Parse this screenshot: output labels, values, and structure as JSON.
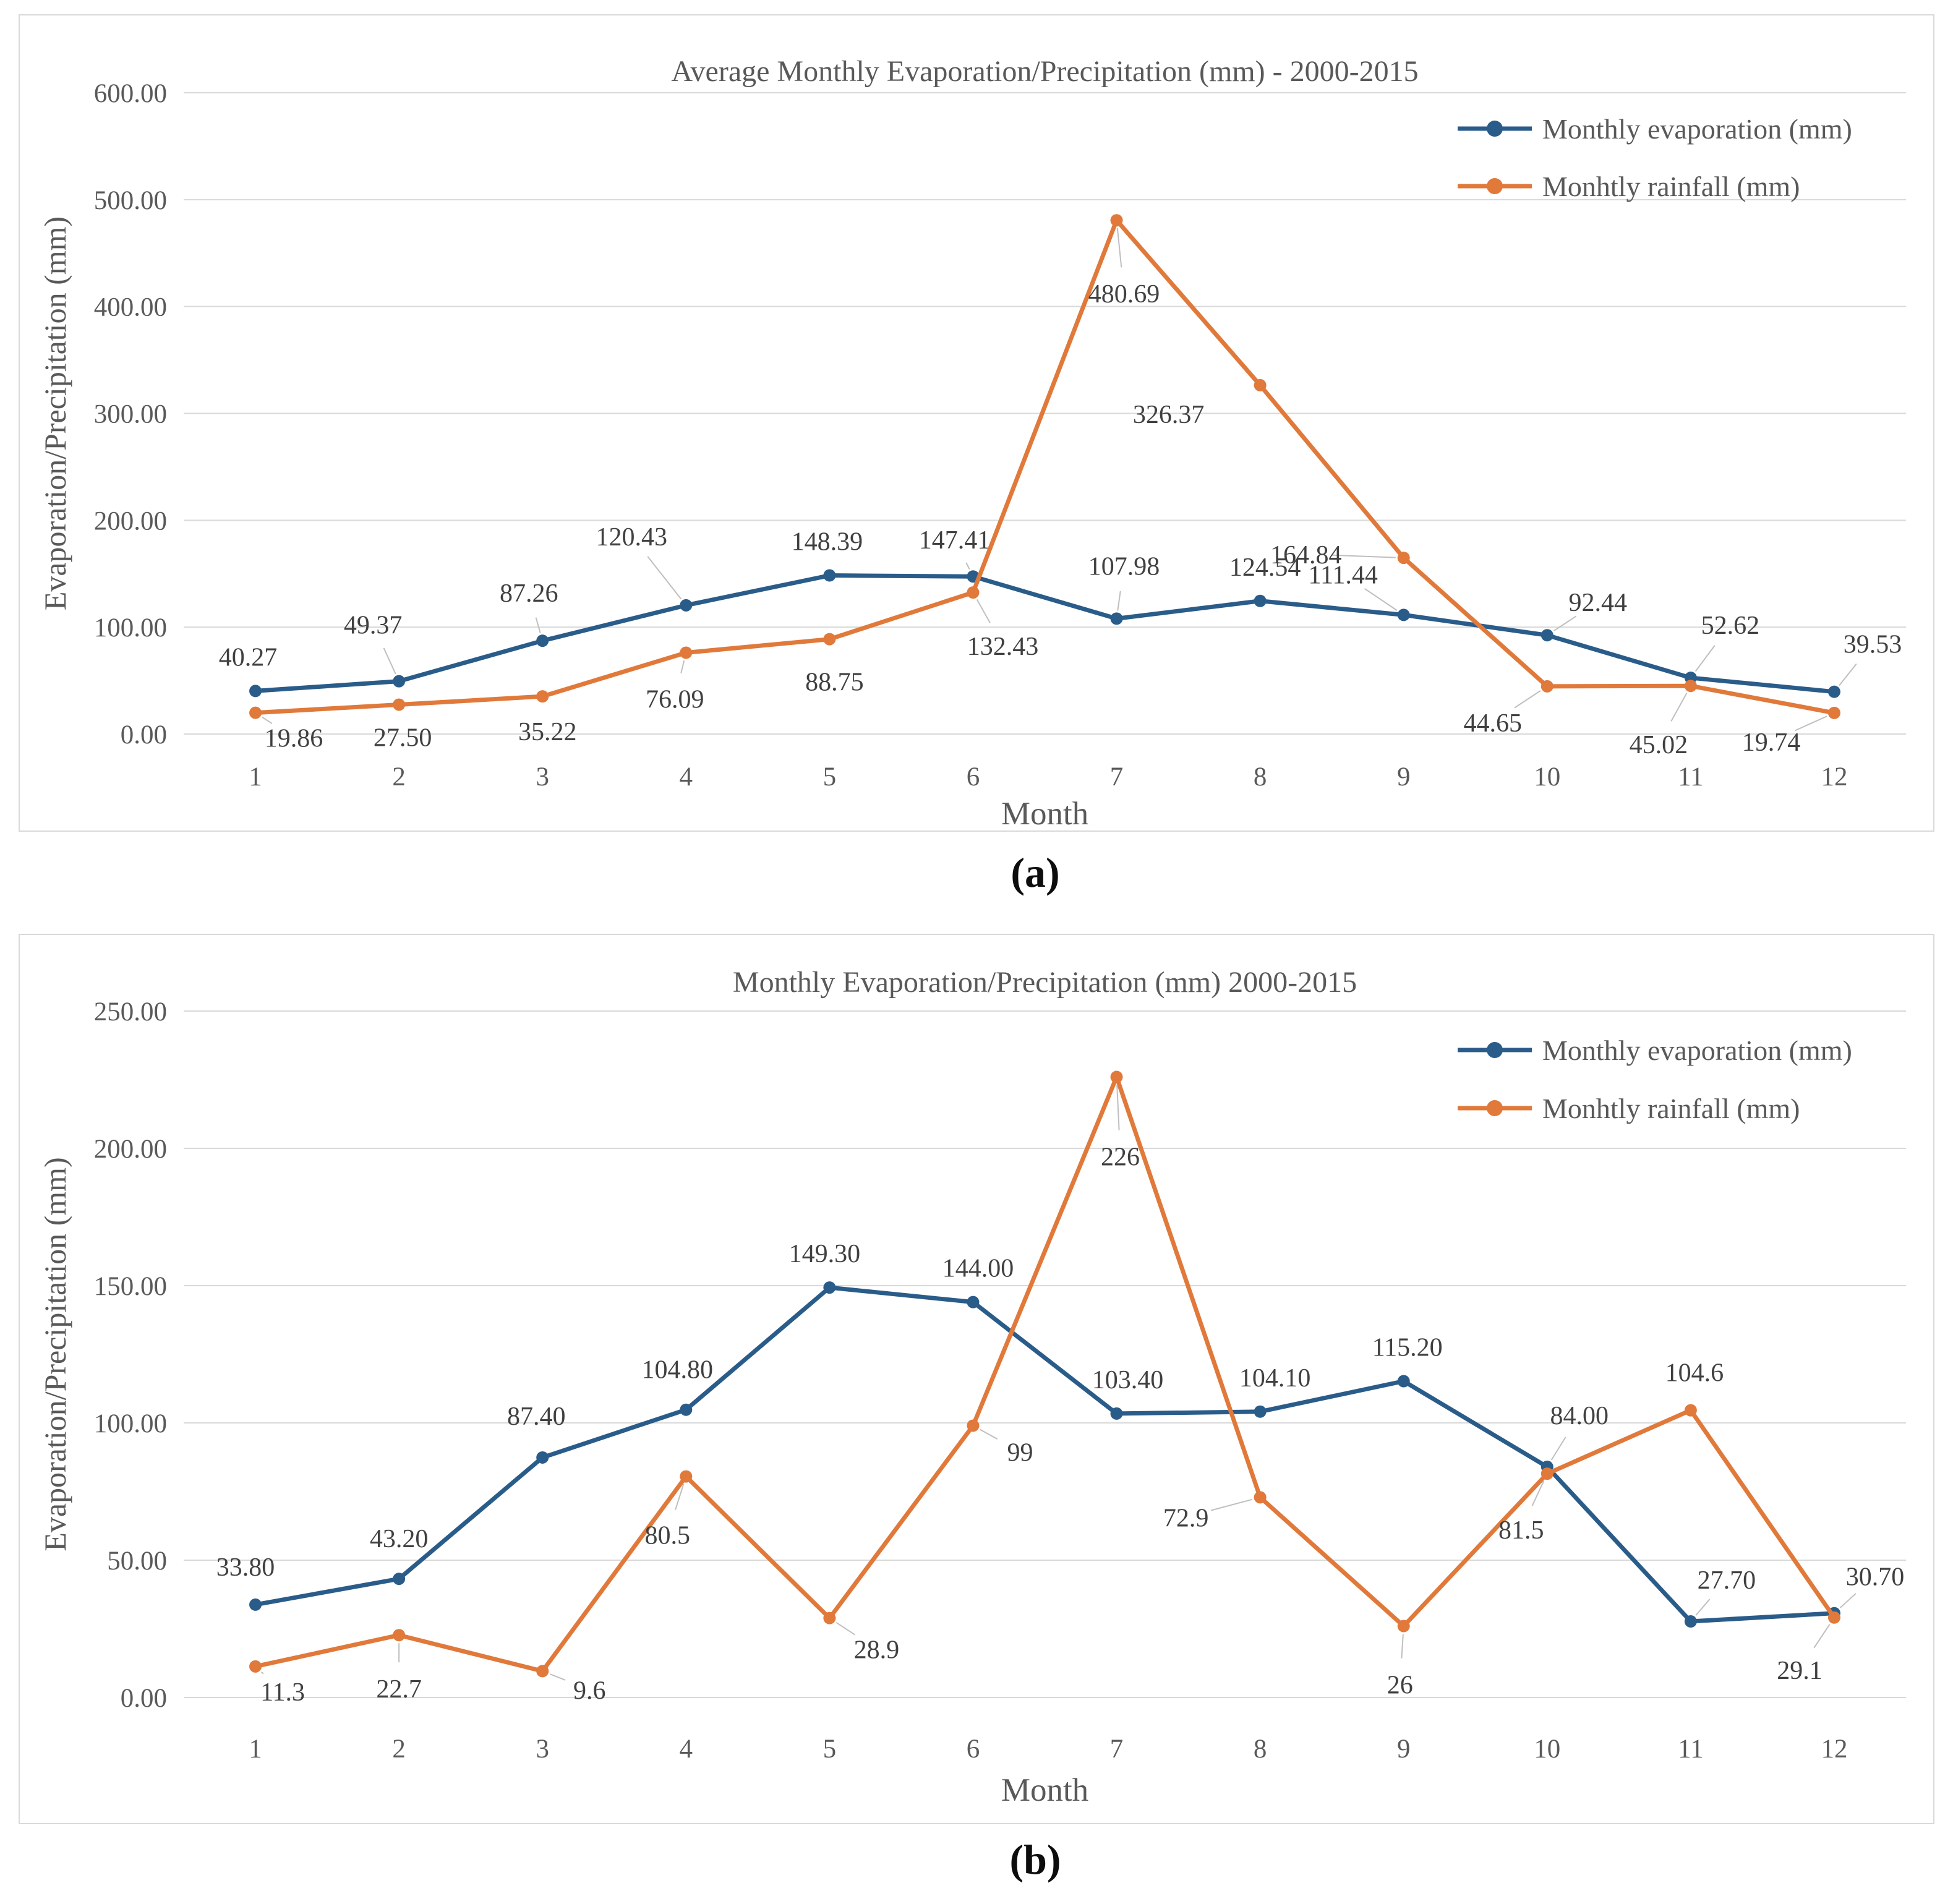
{
  "captions": {
    "a": "(a)",
    "b": "(b)"
  },
  "style": {
    "background": "#ffffff",
    "panel_border": "#d9d9d9",
    "grid_color": "#d9d9d9",
    "axis_text_color": "#595959",
    "data_label_color": "#404040",
    "leader_color": "#bfbfbf",
    "caption_color": "#0d0d0d",
    "evaporation_color": "#2a5c8a",
    "rainfall_color": "#e0793a"
  },
  "chart_data": [
    {
      "id": "a",
      "type": "line",
      "title": "Average Monthly Evaporation/Precipitation (mm) - 2000-2015",
      "xlabel": "Month",
      "ylabel": "Evaporation/Precipitation (mm)",
      "categories": [
        "1",
        "2",
        "3",
        "4",
        "5",
        "6",
        "7",
        "8",
        "9",
        "10",
        "11",
        "12"
      ],
      "ylim": [
        0,
        600
      ],
      "y_tick_labels": [
        "600.00",
        "500.00",
        "400.00",
        "300.00",
        "200.00",
        "100.00",
        "0.00"
      ],
      "grid": "horizontal",
      "legend_position": "top-right",
      "series": [
        {
          "name": "Monthly evaporation (mm)",
          "color": "#2a5c8a",
          "values": [
            40.27,
            49.37,
            87.26,
            120.43,
            148.39,
            147.41,
            107.98,
            124.54,
            111.44,
            92.44,
            52.62,
            39.53
          ],
          "labels": [
            "40.27",
            "49.37",
            "87.26",
            "120.43",
            "148.39",
            "147.41",
            "107.98",
            "124.54",
            "111.44",
            "92.44",
            "52.62",
            "39.53"
          ],
          "label_offsets": [
            [
              -12,
              -56,
              0
            ],
            [
              -42,
              -92,
              1
            ],
            [
              -22,
              -78,
              1
            ],
            [
              -88,
              -112,
              1
            ],
            [
              -4,
              -56,
              0
            ],
            [
              -30,
              -60,
              1
            ],
            [
              12,
              -86,
              1
            ],
            [
              8,
              -56,
              0
            ],
            [
              -98,
              -66,
              1
            ],
            [
              82,
              -54,
              1
            ],
            [
              64,
              -86,
              1
            ],
            [
              62,
              -78,
              1
            ]
          ]
        },
        {
          "name": "Monhtly rainfall (mm)",
          "color": "#e0793a",
          "values": [
            19.86,
            27.5,
            35.22,
            76.09,
            88.75,
            132.43,
            480.69,
            326.37,
            164.84,
            44.65,
            45.02,
            19.74
          ],
          "labels": [
            "19.86",
            "27.50",
            "35.22",
            "76.09",
            "88.75",
            "132.43",
            "480.69",
            "326.37",
            "164.84",
            "44.65",
            "45.02",
            "19.74"
          ],
          "label_offsets": [
            [
              62,
              40,
              1
            ],
            [
              6,
              52,
              0
            ],
            [
              8,
              56,
              0
            ],
            [
              -18,
              74,
              1
            ],
            [
              8,
              68,
              0
            ],
            [
              48,
              86,
              1
            ],
            [
              12,
              118,
              1
            ],
            [
              -148,
              46,
              0
            ],
            [
              -158,
              -6,
              1
            ],
            [
              -88,
              58,
              1
            ],
            [
              -52,
              94,
              1
            ],
            [
              -102,
              46,
              1
            ]
          ]
        }
      ]
    },
    {
      "id": "b",
      "type": "line",
      "title": "Monthly Evaporation/Precipitation (mm) 2000-2015",
      "xlabel": "Month",
      "ylabel": "Evaporation/Precipitation (mm)",
      "categories": [
        "1",
        "2",
        "3",
        "4",
        "5",
        "6",
        "7",
        "8",
        "9",
        "10",
        "11",
        "12"
      ],
      "ylim": [
        0,
        250
      ],
      "y_tick_labels": [
        "250.00",
        "200.00",
        "150.00",
        "100.00",
        "50.00",
        "0.00"
      ],
      "grid": "horizontal",
      "legend_position": "top-right",
      "series": [
        {
          "name": "Monthly evaporation (mm)",
          "color": "#2a5c8a",
          "values": [
            33.8,
            43.2,
            87.4,
            104.8,
            149.3,
            144.0,
            103.4,
            104.1,
            115.2,
            84.0,
            27.7,
            30.7
          ],
          "labels": [
            "33.80",
            "43.20",
            "87.40",
            "104.80",
            "149.30",
            "144.00",
            "103.40",
            "104.10",
            "115.20",
            "84.00",
            "27.70",
            "30.70"
          ],
          "label_offsets": [
            [
              -16,
              -62,
              0
            ],
            [
              0,
              -66,
              0
            ],
            [
              -10,
              -68,
              0
            ],
            [
              -14,
              -66,
              0
            ],
            [
              -8,
              -56,
              0
            ],
            [
              8,
              -56,
              0
            ],
            [
              18,
              -56,
              0
            ],
            [
              24,
              -56,
              0
            ],
            [
              6,
              -56,
              0
            ],
            [
              52,
              -84,
              1
            ],
            [
              58,
              -68,
              1
            ],
            [
              66,
              -60,
              1
            ]
          ]
        },
        {
          "name": "Monhtly rainfall (mm)",
          "color": "#e0793a",
          "values": [
            11.3,
            22.7,
            9.6,
            80.5,
            28.9,
            99,
            226,
            72.9,
            26,
            81.5,
            104.6,
            29.1
          ],
          "labels": [
            "11.3",
            "22.7",
            "9.6",
            "80.5",
            "28.9",
            "99",
            "226",
            "72.9",
            "26",
            "81.5",
            "104.6",
            "29.1"
          ],
          "label_offsets": [
            [
              44,
              40,
              1
            ],
            [
              0,
              86,
              1
            ],
            [
              76,
              30,
              1
            ],
            [
              -30,
              94,
              1
            ],
            [
              76,
              50,
              1
            ],
            [
              76,
              42,
              1
            ],
            [
              6,
              128,
              1
            ],
            [
              -120,
              32,
              1
            ],
            [
              -6,
              94,
              1
            ],
            [
              -42,
              90,
              1
            ],
            [
              6,
              -62,
              0
            ],
            [
              -56,
              84,
              1
            ]
          ]
        }
      ]
    }
  ]
}
